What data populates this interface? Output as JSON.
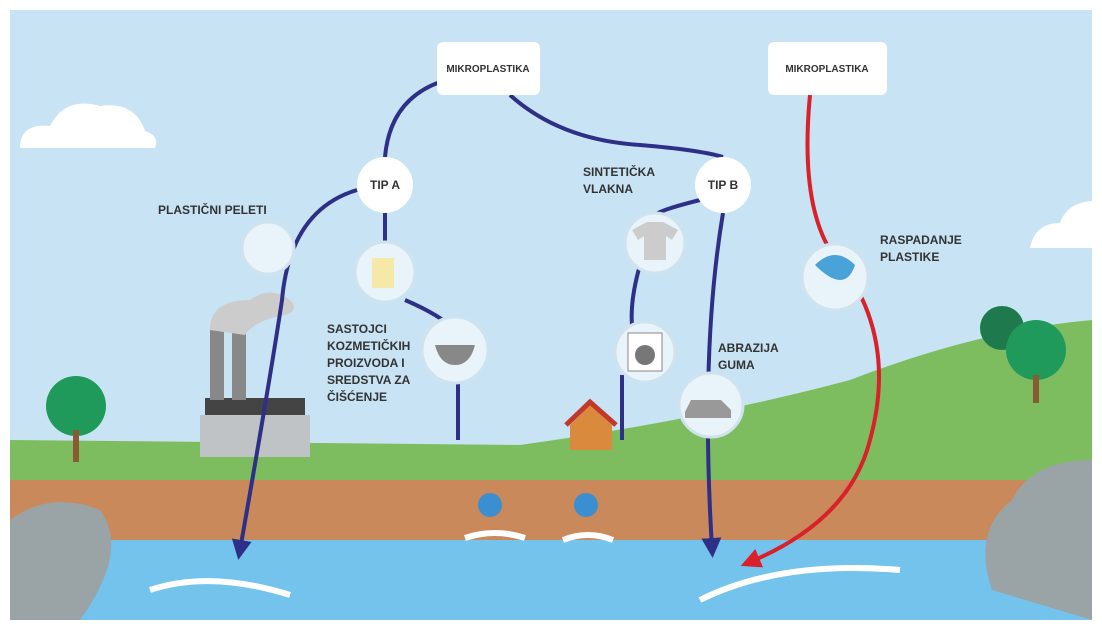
{
  "boxes": [
    {
      "label": "MIKROPLASTIKA"
    },
    {
      "label": "MIKROPLASTIKA"
    }
  ],
  "types": [
    {
      "label": "TIP A"
    },
    {
      "label": "TIP B"
    }
  ],
  "sources": [
    {
      "lines": [
        "PLASTIČNI PELETI"
      ]
    },
    {
      "lines": [
        "SASTOJCI",
        "KOZMETIČKIH",
        "PROIZVODA I",
        "SREDSTVA ZA",
        "ČIŠĆENJE"
      ]
    },
    {
      "lines": [
        "SINTETIČKA",
        "VLAKNA"
      ]
    },
    {
      "lines": [
        "ABRAZIJA",
        "GUMA"
      ]
    },
    {
      "lines": [
        "RASPADANJE",
        "PLASTIKE"
      ]
    }
  ]
}
